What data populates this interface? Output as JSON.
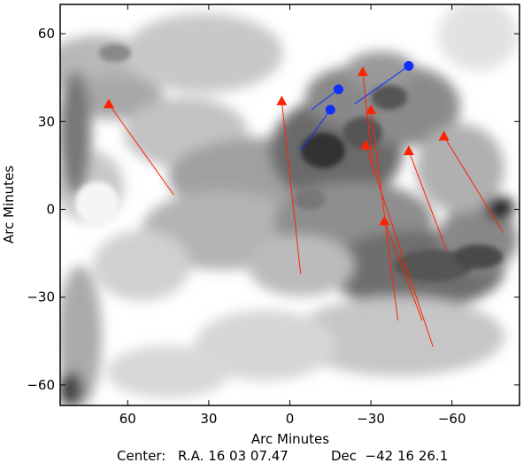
{
  "chart_data": {
    "type": "scatter",
    "title": "",
    "xlabel": "Arc Minutes",
    "ylabel": "Arc Minutes",
    "footer": {
      "center_label": "Center:",
      "ra_text": "R.A. 16 03 07.47",
      "dec_text": "Dec  −42 16 26.1"
    },
    "xlim": [
      85,
      -85
    ],
    "ylim": [
      -67,
      70
    ],
    "xticks": [
      60,
      30,
      0,
      -30,
      -60
    ],
    "xtick_labels": [
      "60",
      "30",
      "0",
      "−30",
      "−60"
    ],
    "yticks": [
      60,
      30,
      0,
      -30,
      -60
    ],
    "ytick_labels": [
      "60",
      "30",
      "0",
      "−30",
      "−60"
    ],
    "background": "grayscale intensity map",
    "series": [
      {
        "marker": "triangle",
        "color": "#ff2200",
        "points": [
          {
            "x": 67,
            "y": 36,
            "x2": 43,
            "y2": 5
          },
          {
            "x": 3,
            "y": 37,
            "x2": -4,
            "y2": -22
          },
          {
            "x": -27,
            "y": 47,
            "x2": -31,
            "y2": 12
          },
          {
            "x": -30,
            "y": 34,
            "x2": -40,
            "y2": -38
          },
          {
            "x": -28,
            "y": 22,
            "x2": -53,
            "y2": -47
          },
          {
            "x": -35,
            "y": -4,
            "x2": -49,
            "y2": -38
          },
          {
            "x": -44,
            "y": 20,
            "x2": -58,
            "y2": -14
          },
          {
            "x": -57,
            "y": 25,
            "x2": -79,
            "y2": -8
          }
        ]
      },
      {
        "marker": "circle",
        "color": "#1030ff",
        "points": [
          {
            "x": -44,
            "y": 49,
            "x2": -24,
            "y2": 36
          },
          {
            "x": -18,
            "y": 41,
            "x2": -8,
            "y2": 34
          },
          {
            "x": -15,
            "y": 34,
            "x2": -4,
            "y2": 20
          }
        ]
      }
    ]
  }
}
